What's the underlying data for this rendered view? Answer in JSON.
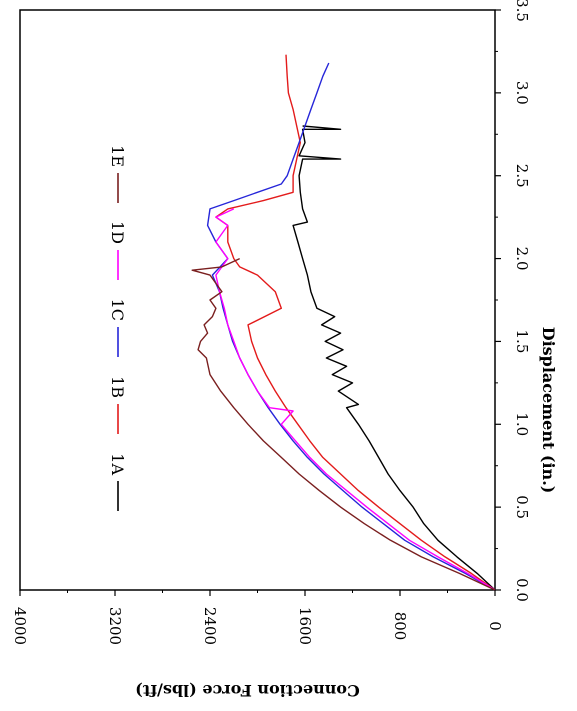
{
  "chart_data": {
    "type": "line",
    "orientation": "rotated-90",
    "xlabel": "Displacement (in.)",
    "ylabel": "Connection Force (lbs/ft)",
    "xlim": [
      0,
      3.5
    ],
    "ylim": [
      0,
      4000
    ],
    "x_ticks": [
      "0.0",
      "0.5",
      "1.0",
      "1.5",
      "2.0",
      "2.5",
      "3.0",
      "3.5"
    ],
    "y_ticks": [
      "0",
      "800",
      "1600",
      "2400",
      "3200",
      "4000"
    ],
    "grid": false,
    "legend_placement": "left",
    "series": [
      {
        "name": "1A",
        "color": "#000000",
        "points": [
          [
            0,
            0
          ],
          [
            0.1,
            150
          ],
          [
            0.2,
            320
          ],
          [
            0.3,
            480
          ],
          [
            0.4,
            600
          ],
          [
            0.5,
            690
          ],
          [
            0.6,
            800
          ],
          [
            0.7,
            900
          ],
          [
            0.8,
            980
          ],
          [
            0.9,
            1060
          ],
          [
            1.0,
            1150
          ],
          [
            1.1,
            1250
          ],
          [
            1.12,
            1150
          ],
          [
            1.2,
            1320
          ],
          [
            1.25,
            1200
          ],
          [
            1.3,
            1370
          ],
          [
            1.35,
            1250
          ],
          [
            1.4,
            1420
          ],
          [
            1.45,
            1280
          ],
          [
            1.5,
            1430
          ],
          [
            1.55,
            1300
          ],
          [
            1.6,
            1460
          ],
          [
            1.65,
            1350
          ],
          [
            1.7,
            1500
          ],
          [
            1.8,
            1550
          ],
          [
            1.9,
            1580
          ],
          [
            2.0,
            1620
          ],
          [
            2.1,
            1660
          ],
          [
            2.2,
            1700
          ],
          [
            2.22,
            1580
          ],
          [
            2.3,
            1620
          ],
          [
            2.4,
            1640
          ],
          [
            2.5,
            1650
          ],
          [
            2.6,
            1620
          ],
          [
            2.6,
            1300
          ],
          [
            2.62,
            1650
          ],
          [
            2.7,
            1600
          ],
          [
            2.78,
            1620
          ],
          [
            2.78,
            1300
          ],
          [
            2.8,
            1620
          ]
        ]
      },
      {
        "name": "1B",
        "color": "#e31b1b",
        "points": [
          [
            0,
            0
          ],
          [
            0.1,
            200
          ],
          [
            0.2,
            420
          ],
          [
            0.3,
            620
          ],
          [
            0.4,
            800
          ],
          [
            0.5,
            980
          ],
          [
            0.6,
            1150
          ],
          [
            0.7,
            1300
          ],
          [
            0.8,
            1450
          ],
          [
            0.9,
            1560
          ],
          [
            1.0,
            1660
          ],
          [
            1.1,
            1760
          ],
          [
            1.2,
            1850
          ],
          [
            1.3,
            1930
          ],
          [
            1.4,
            2000
          ],
          [
            1.5,
            2050
          ],
          [
            1.6,
            2080
          ],
          [
            1.7,
            1800
          ],
          [
            1.8,
            1850
          ],
          [
            1.9,
            2000
          ],
          [
            1.95,
            2150
          ],
          [
            2.0,
            2200
          ],
          [
            2.1,
            2250
          ],
          [
            2.2,
            2250
          ],
          [
            2.25,
            2350
          ],
          [
            2.3,
            2250
          ],
          [
            2.35,
            1950
          ],
          [
            2.4,
            1700
          ],
          [
            2.5,
            1700
          ],
          [
            2.7,
            1640
          ],
          [
            2.9,
            1700
          ],
          [
            3.0,
            1740
          ],
          [
            3.1,
            1750
          ],
          [
            3.23,
            1760
          ]
        ]
      },
      {
        "name": "1C",
        "color": "#2626d9",
        "points": [
          [
            0,
            0
          ],
          [
            0.1,
            250
          ],
          [
            0.2,
            520
          ],
          [
            0.3,
            760
          ],
          [
            0.4,
            940
          ],
          [
            0.5,
            1120
          ],
          [
            0.6,
            1280
          ],
          [
            0.7,
            1440
          ],
          [
            0.8,
            1580
          ],
          [
            0.9,
            1700
          ],
          [
            1.0,
            1810
          ],
          [
            1.1,
            1910
          ],
          [
            1.2,
            2000
          ],
          [
            1.3,
            2080
          ],
          [
            1.4,
            2150
          ],
          [
            1.5,
            2210
          ],
          [
            1.6,
            2250
          ],
          [
            1.7,
            2290
          ],
          [
            1.8,
            2320
          ],
          [
            1.9,
            2380
          ],
          [
            2.0,
            2250
          ],
          [
            2.1,
            2350
          ],
          [
            2.2,
            2420
          ],
          [
            2.3,
            2400
          ],
          [
            2.35,
            2200
          ],
          [
            2.45,
            1800
          ],
          [
            2.5,
            1750
          ],
          [
            2.6,
            1700
          ],
          [
            2.7,
            1650
          ],
          [
            2.8,
            1600
          ],
          [
            2.9,
            1550
          ],
          [
            3.0,
            1500
          ],
          [
            3.1,
            1450
          ],
          [
            3.18,
            1400
          ]
        ]
      },
      {
        "name": "1D",
        "color": "#ff00ff",
        "points": [
          [
            0,
            0
          ],
          [
            0.1,
            230
          ],
          [
            0.2,
            480
          ],
          [
            0.3,
            720
          ],
          [
            0.4,
            900
          ],
          [
            0.5,
            1080
          ],
          [
            0.6,
            1250
          ],
          [
            0.7,
            1420
          ],
          [
            0.8,
            1560
          ],
          [
            0.9,
            1680
          ],
          [
            1.0,
            1800
          ],
          [
            1.08,
            1700
          ],
          [
            1.1,
            1900
          ],
          [
            1.2,
            2000
          ],
          [
            1.3,
            2080
          ],
          [
            1.4,
            2150
          ],
          [
            1.5,
            2200
          ],
          [
            1.6,
            2250
          ],
          [
            1.7,
            2280
          ],
          [
            1.8,
            2320
          ],
          [
            1.9,
            2350
          ],
          [
            2.0,
            2250
          ],
          [
            2.1,
            2350
          ],
          [
            2.2,
            2250
          ],
          [
            2.25,
            2350
          ],
          [
            2.3,
            2200
          ]
        ]
      },
      {
        "name": "1E",
        "color": "#7a1f1f",
        "points": [
          [
            0,
            0
          ],
          [
            0.1,
            300
          ],
          [
            0.2,
            620
          ],
          [
            0.3,
            880
          ],
          [
            0.4,
            1100
          ],
          [
            0.5,
            1300
          ],
          [
            0.6,
            1480
          ],
          [
            0.7,
            1650
          ],
          [
            0.8,
            1800
          ],
          [
            0.9,
            1950
          ],
          [
            1.0,
            2080
          ],
          [
            1.1,
            2200
          ],
          [
            1.2,
            2310
          ],
          [
            1.3,
            2400
          ],
          [
            1.4,
            2430
          ],
          [
            1.45,
            2500
          ],
          [
            1.5,
            2480
          ],
          [
            1.55,
            2420
          ],
          [
            1.6,
            2450
          ],
          [
            1.65,
            2380
          ],
          [
            1.7,
            2350
          ],
          [
            1.75,
            2400
          ],
          [
            1.8,
            2300
          ],
          [
            1.85,
            2350
          ],
          [
            1.9,
            2400
          ],
          [
            1.93,
            2550
          ],
          [
            1.95,
            2300
          ],
          [
            2.0,
            2150
          ]
        ]
      }
    ]
  }
}
